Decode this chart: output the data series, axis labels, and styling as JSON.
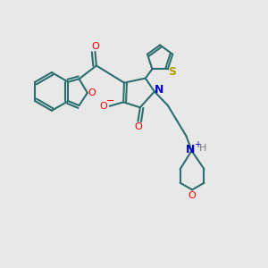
{
  "background_color": "#e8e8e8",
  "bond_color": "#2d6e6e",
  "bond_lw": 1.5,
  "atom_colors": {
    "O": "#ff0000",
    "N": "#0000cc",
    "S": "#b8a000",
    "H": "#777777"
  }
}
